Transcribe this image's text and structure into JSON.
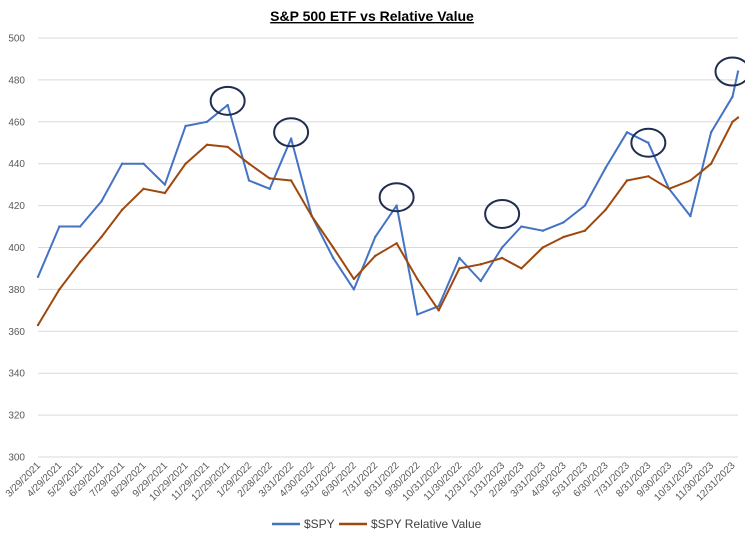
{
  "chart_data": {
    "type": "line",
    "title": "S&P 500 ETF vs Relative Value",
    "xlabel": "",
    "ylabel": "",
    "ylim": [
      300,
      500
    ],
    "yticks": [
      300,
      320,
      340,
      360,
      380,
      400,
      420,
      440,
      460,
      480,
      500
    ],
    "grid": true,
    "legend_position": "bottom",
    "x_tick_labels": [
      "3/29/2021",
      "4/29/2021",
      "5/29/2021",
      "6/29/2021",
      "7/29/2021",
      "8/29/2021",
      "9/29/2021",
      "10/29/2021",
      "11/29/2021",
      "12/29/2021",
      "1/29/2022",
      "2/28/2022",
      "3/31/2022",
      "4/30/2022",
      "5/31/2022",
      "6/30/2022",
      "7/31/2022",
      "8/31/2022",
      "9/30/2022",
      "10/31/2022",
      "11/30/2022",
      "12/31/2022",
      "1/31/2023",
      "2/28/2023",
      "3/31/2023",
      "4/30/2023",
      "5/31/2023",
      "6/30/2023",
      "7/31/2023",
      "8/31/2023",
      "9/30/2023",
      "10/31/2023",
      "11/30/2023",
      "12/31/2023"
    ],
    "x_points": [
      "3/29/2021",
      "4/29/2021",
      "5/29/2021",
      "6/29/2021",
      "7/29/2021",
      "8/29/2021",
      "9/29/2021",
      "10/29/2021",
      "11/29/2021",
      "12/29/2021",
      "1/29/2022",
      "2/28/2022",
      "3/31/2022",
      "4/30/2022",
      "5/31/2022",
      "6/30/2022",
      "7/31/2022",
      "8/31/2022",
      "9/30/2022",
      "10/31/2022",
      "11/30/2022",
      "12/31/2022",
      "1/31/2023",
      "2/28/2023",
      "3/31/2023",
      "4/30/2023",
      "5/31/2023",
      "6/30/2023",
      "7/31/2023",
      "8/31/2023",
      "9/30/2023",
      "10/31/2023",
      "11/30/2023",
      "12/31/2023",
      "1/8/2024"
    ],
    "series": [
      {
        "name": "$SPY",
        "color": "#4472c4",
        "values": [
          386,
          410,
          410,
          422,
          440,
          440,
          430,
          458,
          460,
          468,
          432,
          428,
          452,
          415,
          395,
          380,
          405,
          420,
          368,
          372,
          395,
          384,
          400,
          410,
          408,
          412,
          420,
          438,
          455,
          450,
          428,
          415,
          455,
          472,
          484
        ]
      },
      {
        "name": "$SPY Relative Value",
        "color": "#9e480e",
        "values": [
          363,
          380,
          393,
          405,
          418,
          428,
          426,
          440,
          449,
          448,
          440,
          433,
          432,
          415,
          400,
          385,
          396,
          402,
          385,
          370,
          390,
          392,
          395,
          390,
          400,
          405,
          408,
          418,
          432,
          434,
          428,
          432,
          440,
          460,
          462
        ]
      }
    ],
    "annotations": [
      {
        "type": "circle",
        "near": "12/29/2021",
        "value": 470
      },
      {
        "type": "circle",
        "near": "3/31/2022",
        "value": 455
      },
      {
        "type": "circle",
        "near": "8/31/2022",
        "value": 424
      },
      {
        "type": "circle",
        "near": "1/31/2023",
        "value": 416
      },
      {
        "type": "circle",
        "near": "8/31/2023",
        "value": 450
      },
      {
        "type": "circle",
        "near": "12/31/2023",
        "value": 484
      }
    ]
  }
}
